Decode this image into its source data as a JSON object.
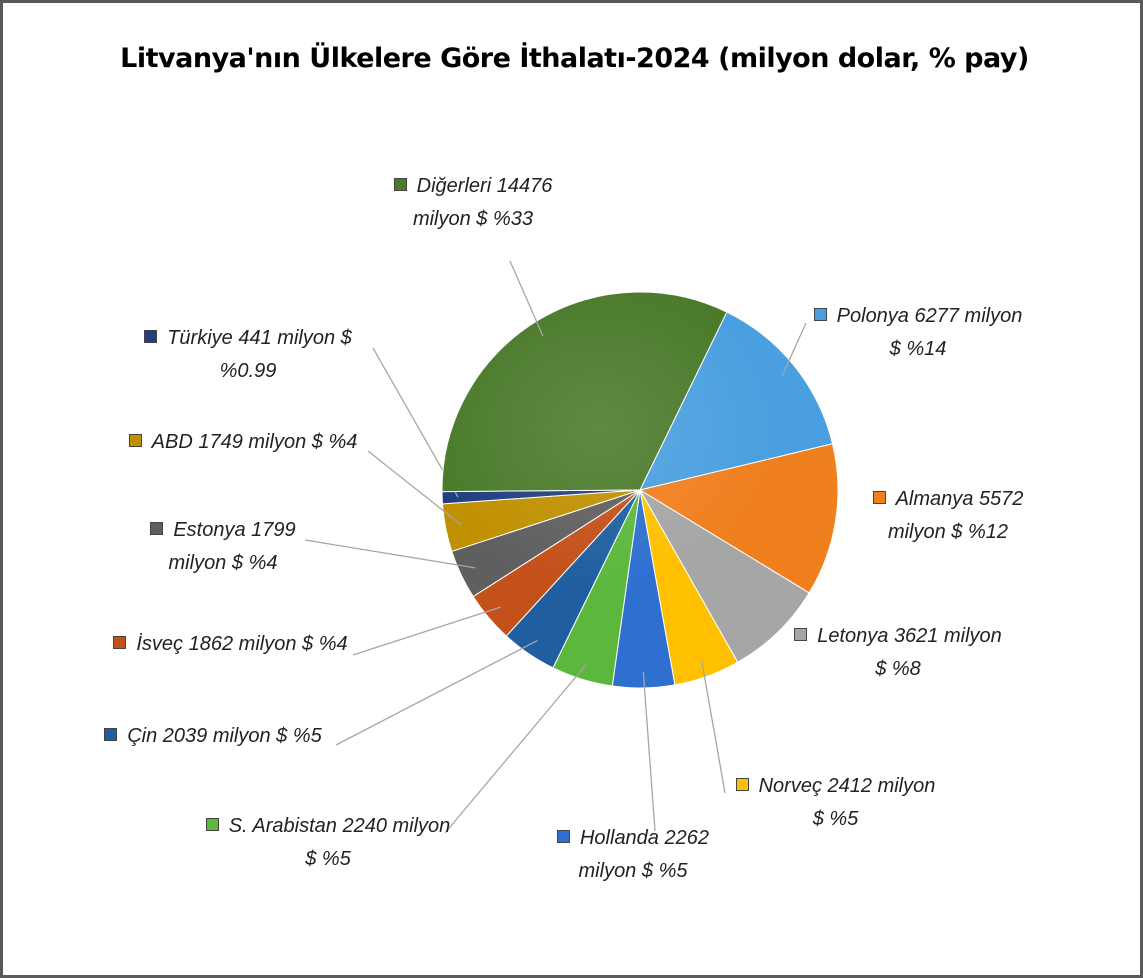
{
  "chart_data": {
    "type": "pie",
    "title": "Litvanya'nın Ülkelere Göre İthalatı-2024 (milyon dolar, % pay)",
    "categories": [
      "Polonya",
      "Almanya",
      "Letonya",
      "Norveç",
      "Hollanda",
      "S. Arabistan",
      "Çin",
      "İsveç",
      "Estonya",
      "ABD",
      "Türkiye",
      "Diğerleri"
    ],
    "values": [
      6277,
      5572,
      3621,
      2412,
      2262,
      2240,
      2039,
      1862,
      1799,
      1749,
      441,
      14476
    ],
    "value_labels": [
      "6277 milyon $",
      "5572 milyon $",
      "3621 milyon $",
      "2412 milyon $",
      "2262 milyon $",
      "2240 milyon $",
      "2039 milyon $",
      "1862 milyon $",
      "1799 milyon $",
      "1749 milyon $",
      "441 milyon $",
      "14476 milyon $"
    ],
    "shares": [
      14,
      12,
      8,
      5,
      5,
      5,
      5,
      4,
      4,
      4,
      0.99,
      33
    ],
    "share_labels": [
      "%14",
      "%12",
      "%8",
      "%5",
      "%5",
      "%5",
      "%5",
      "%4",
      "%4",
      "%4",
      "%0.99",
      "%33"
    ],
    "colors": [
      "#4a9fe0",
      "#f07f1e",
      "#a6a6a6",
      "#ffc000",
      "#2f6fd0",
      "#5cb83c",
      "#1f5f9f",
      "#c4501a",
      "#5f5f5f",
      "#c09000",
      "#203f7f",
      "#4a7a2a"
    ]
  }
}
